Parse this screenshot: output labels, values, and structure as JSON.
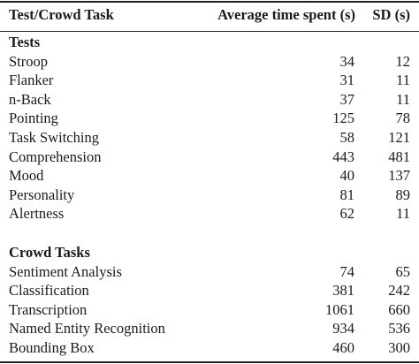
{
  "table": {
    "headers": {
      "task": "Test/Crowd Task",
      "avg": "Average time spent (s)",
      "sd": "SD (s)"
    },
    "sections": [
      {
        "title": "Tests",
        "rows": [
          {
            "task": "Stroop",
            "avg": "34",
            "sd": "12"
          },
          {
            "task": "Flanker",
            "avg": "31",
            "sd": "11"
          },
          {
            "task": "n-Back",
            "avg": "37",
            "sd": "11"
          },
          {
            "task": "Pointing",
            "avg": "125",
            "sd": "78"
          },
          {
            "task": "Task Switching",
            "avg": "58",
            "sd": "121"
          },
          {
            "task": "Comprehension",
            "avg": "443",
            "sd": "481"
          },
          {
            "task": "Mood",
            "avg": "40",
            "sd": "137"
          },
          {
            "task": "Personality",
            "avg": "81",
            "sd": "89"
          },
          {
            "task": "Alertness",
            "avg": "62",
            "sd": "11"
          }
        ]
      },
      {
        "title": "Crowd Tasks",
        "rows": [
          {
            "task": "Sentiment Analysis",
            "avg": "74",
            "sd": "65"
          },
          {
            "task": "Classification",
            "avg": "381",
            "sd": "242"
          },
          {
            "task": "Transcription",
            "avg": "1061",
            "sd": "660"
          },
          {
            "task": "Named Entity Recognition",
            "avg": "934",
            "sd": "536"
          },
          {
            "task": "Bounding Box",
            "avg": "460",
            "sd": "300"
          }
        ]
      }
    ]
  }
}
